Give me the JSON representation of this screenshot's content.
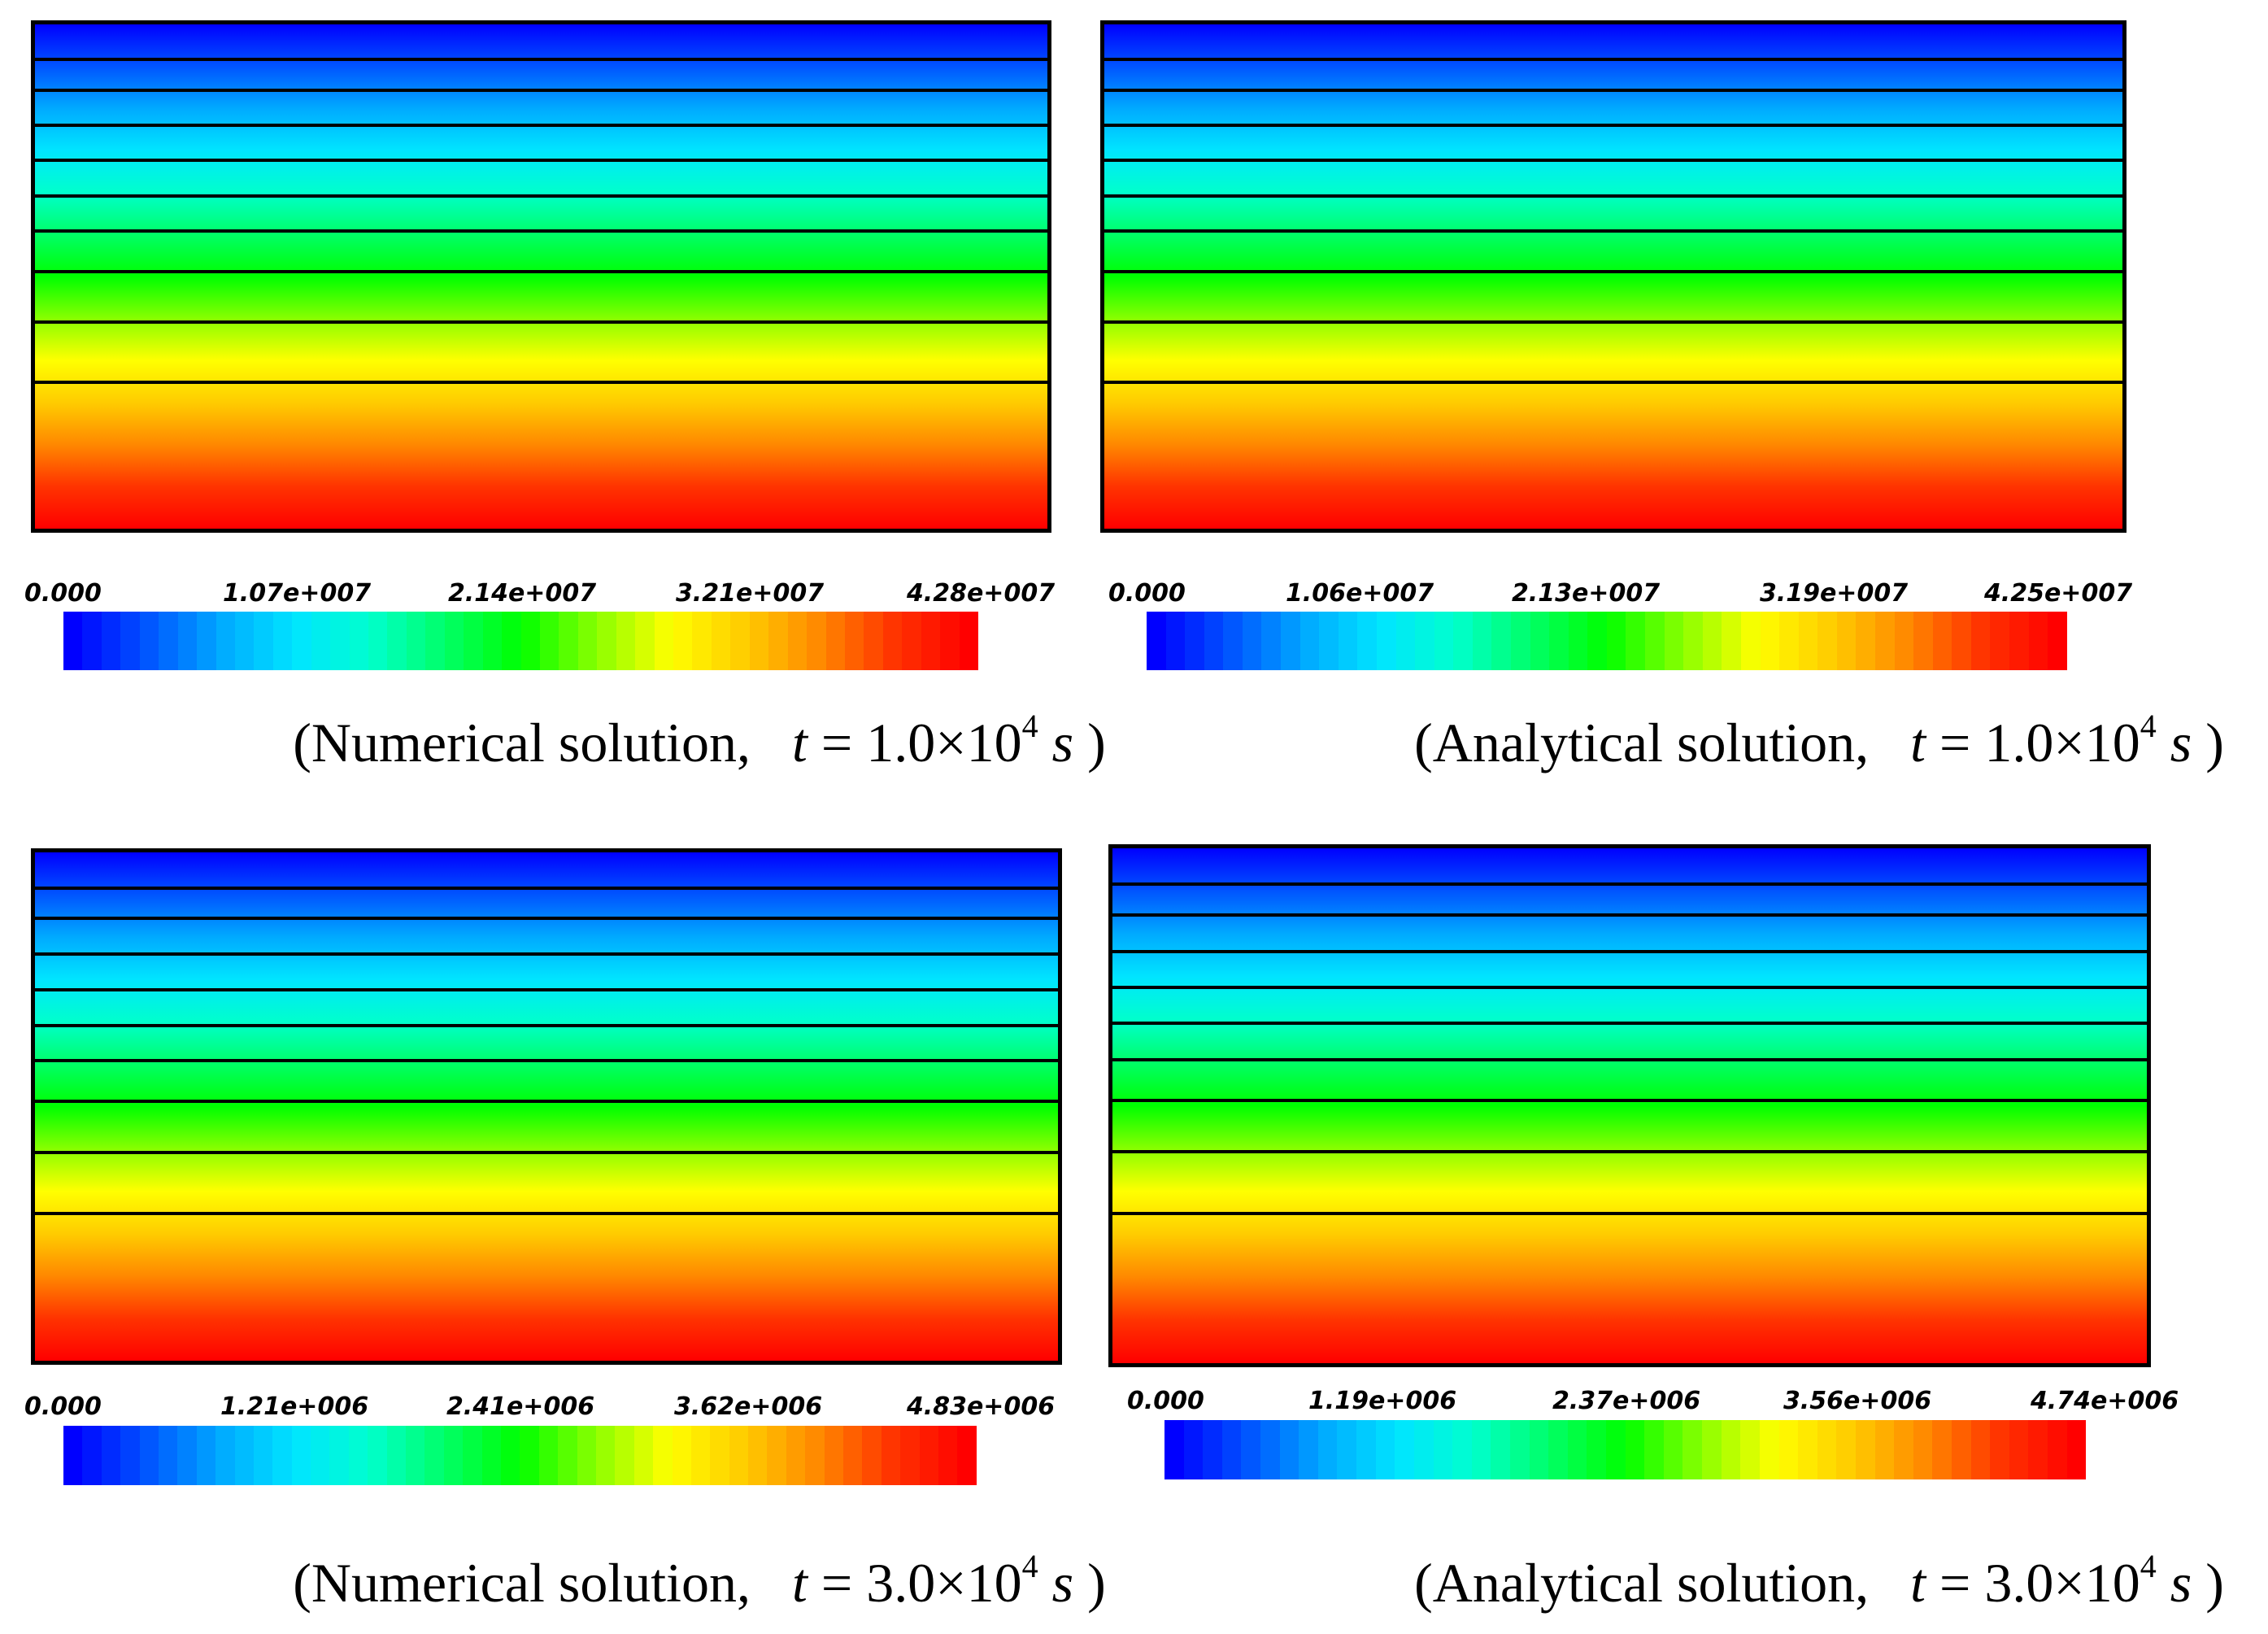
{
  "colormap": [
    "#0000ff",
    "#0055ff",
    "#00aaff",
    "#00e5ff",
    "#00ffcc",
    "#00ff66",
    "#00ff00",
    "#88ff00",
    "#ffff00",
    "#ffcc00",
    "#ff8800",
    "#ff3300",
    "#ff0000"
  ],
  "chart_data": [
    {
      "type": "heatmap",
      "name": "numerical-t1",
      "caption": {
        "open": "(Numerical solution,",
        "variable": "t",
        "equals": " = ",
        "mantissa": "1.0",
        "times": "×",
        "base": "10",
        "exponent": "4",
        "unit": "s",
        "close": ")"
      },
      "colorbar": {
        "min": 0,
        "max": 42800000,
        "tick_labels": [
          "0.000",
          "1.07e+007",
          "2.14e+007",
          "3.21e+007",
          "4.28e+007"
        ]
      },
      "contour_levels": [
        0.07,
        0.13,
        0.2,
        0.27,
        0.34,
        0.41,
        0.49,
        0.59,
        0.71
      ]
    },
    {
      "type": "heatmap",
      "name": "analytical-t1",
      "caption": {
        "open": "(Analytical solution,",
        "variable": "t",
        "equals": " = ",
        "mantissa": "1.0",
        "times": "×",
        "base": "10",
        "exponent": "4",
        "unit": "s",
        "close": ")"
      },
      "colorbar": {
        "min": 0,
        "max": 42500000,
        "tick_labels": [
          "0.000",
          "1.06e+007",
          "2.13e+007",
          "3.19e+007",
          "4.25e+007"
        ]
      },
      "contour_levels": [
        0.07,
        0.13,
        0.2,
        0.27,
        0.34,
        0.41,
        0.49,
        0.59,
        0.71
      ]
    },
    {
      "type": "heatmap",
      "name": "numerical-t3",
      "caption": {
        "open": "(Numerical solution,",
        "variable": "t",
        "equals": " = ",
        "mantissa": "3.0",
        "times": "×",
        "base": "10",
        "exponent": "4",
        "unit": "s",
        "close": ")"
      },
      "colorbar": {
        "min": 0,
        "max": 4830000,
        "tick_labels": [
          "0.000",
          "1.21e+006",
          "2.41e+006",
          "3.62e+006",
          "4.83e+006"
        ]
      },
      "contour_levels": [
        0.07,
        0.13,
        0.2,
        0.27,
        0.34,
        0.41,
        0.49,
        0.59,
        0.71
      ]
    },
    {
      "type": "heatmap",
      "name": "analytical-t3",
      "caption": {
        "open": "(Analytical solution,",
        "variable": "t",
        "equals": " = ",
        "mantissa": "3.0",
        "times": "×",
        "base": "10",
        "exponent": "4",
        "unit": "s",
        "close": ")"
      },
      "colorbar": {
        "min": 0,
        "max": 4740000,
        "tick_labels": [
          "0.000",
          "1.19e+006",
          "2.37e+006",
          "3.56e+006",
          "4.74e+006"
        ]
      },
      "contour_levels": [
        0.07,
        0.13,
        0.2,
        0.27,
        0.34,
        0.41,
        0.49,
        0.59,
        0.71
      ]
    }
  ]
}
